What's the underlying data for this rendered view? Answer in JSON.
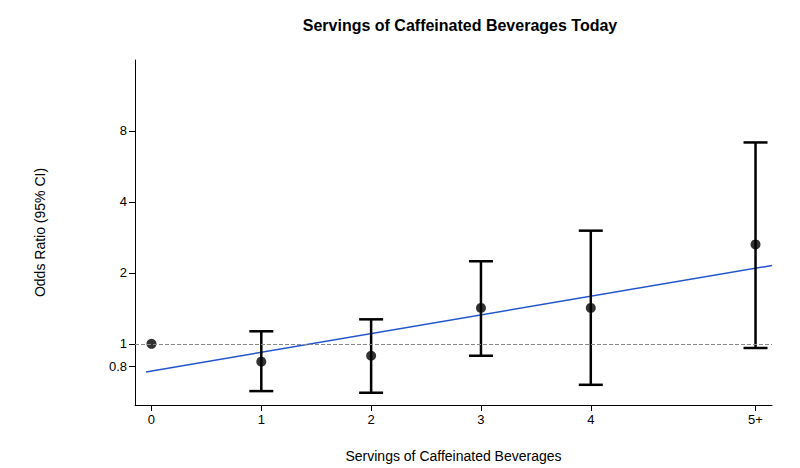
{
  "chart_data": {
    "type": "scatter",
    "title": "Servings of Caffeinated Beverages Today",
    "x_label": "Servings of Caffeinated Beverages",
    "y_label": "Odds Ratio (95% CI)",
    "x": [
      0,
      1,
      2,
      3,
      4,
      5.5
    ],
    "values": [
      1,
      0.84,
      0.89,
      1.42,
      1.42,
      2.64
    ],
    "ci_lower": [
      null,
      0.63,
      0.62,
      0.89,
      0.67,
      0.96
    ],
    "ci_upper": [
      null,
      1.13,
      1.27,
      2.24,
      3.02,
      7.15
    ],
    "color": "#000000",
    "marker": "circle",
    "log": "y",
    "xlim": [
      -0.15,
      5.65
    ],
    "xticks": [
      0,
      1,
      2,
      3,
      4,
      {
        "value": 5.5,
        "label": "5+"
      }
    ],
    "ylim": [
      0.55,
      16
    ],
    "yticks": [
      0.8,
      1,
      2,
      4,
      8
    ],
    "reference_line": {
      "value": 1,
      "color": "#888888",
      "line_style": "dashed"
    },
    "fit_line": {
      "x": [
        -0.05,
        5.65
      ],
      "values": [
        0.76,
        2.15
      ],
      "color": "#2255cc"
    },
    "grid": false
  }
}
